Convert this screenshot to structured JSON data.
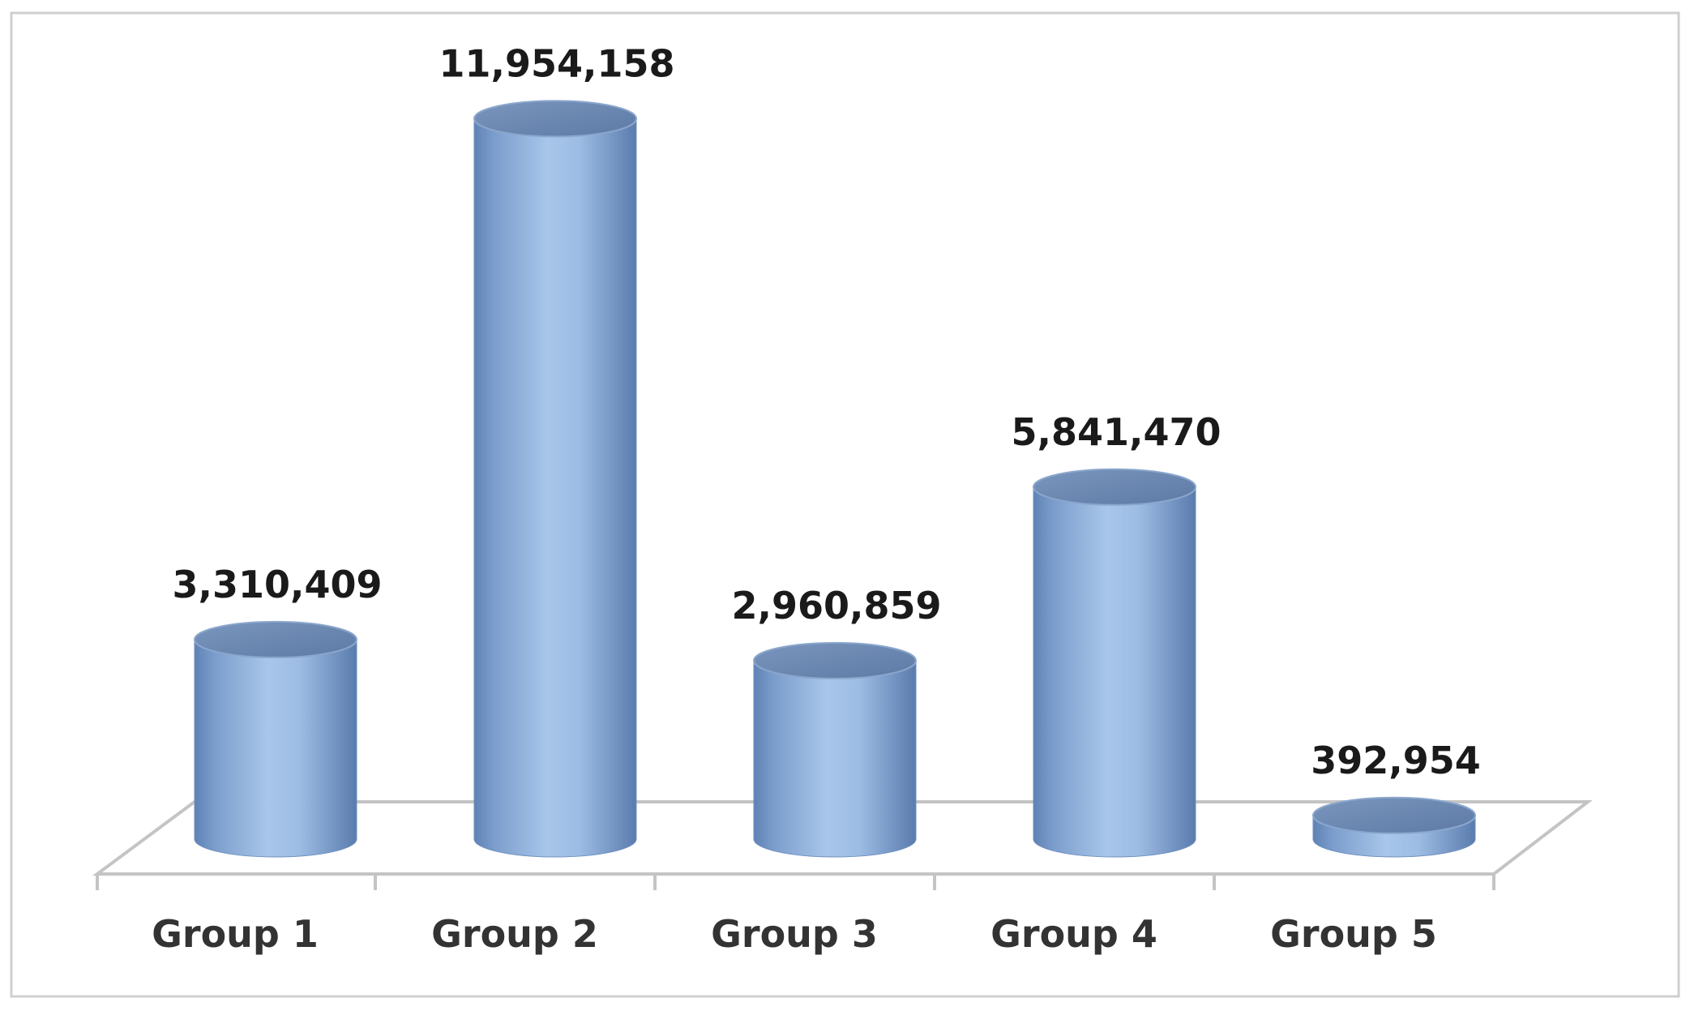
{
  "colors": {
    "bar_light": "#a8c6ea",
    "bar_mid": "#8eb1de",
    "bar_dark": "#5f82b4",
    "bar_top": "#6a87b0",
    "frame_border": "#d0d0d0",
    "floor_line": "#c8c8c8"
  },
  "chart_data": {
    "type": "bar",
    "style": "3d-cylinder",
    "categories": [
      "Group 1",
      "Group 2",
      "Group 3",
      "Group 4",
      "Group 5"
    ],
    "values": [
      3310409,
      11954158,
      2960859,
      5841470,
      392954
    ],
    "data_labels": [
      "3,310,409",
      "11,954,158",
      "2,960,859",
      "5,841,470",
      "392,954"
    ],
    "title": "",
    "xlabel": "",
    "ylabel": "",
    "ylim": [
      0,
      12000000
    ],
    "grid": false,
    "legend": "none"
  }
}
